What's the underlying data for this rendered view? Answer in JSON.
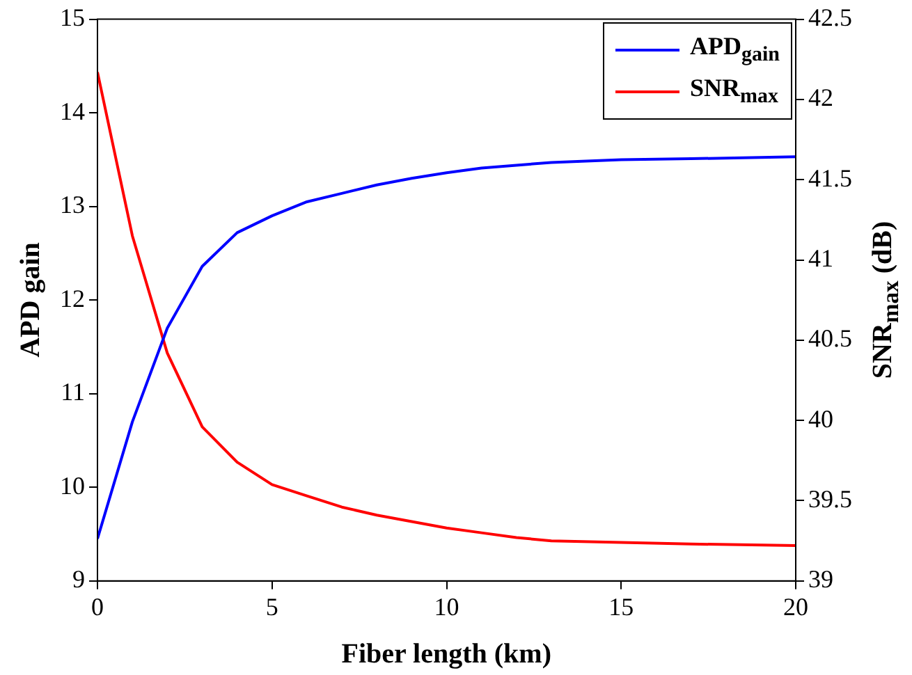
{
  "chart_data": {
    "type": "line",
    "xlabel": "Fiber length (km)",
    "ylabel": "APD gain",
    "y2label": "SNR$_{max}$ (dB)",
    "x": [
      0,
      1,
      2,
      3,
      4,
      5,
      6,
      7,
      8,
      9,
      10,
      11,
      12,
      13,
      15,
      17,
      20
    ],
    "series": [
      {
        "name": "APD$_{gain}$",
        "color": "#0000ff",
        "values": [
          9.45,
          10.7,
          11.7,
          12.36,
          12.72,
          12.9,
          13.05,
          13.14,
          13.23,
          13.3,
          13.36,
          13.41,
          13.44,
          13.47,
          13.5,
          13.51,
          13.53
        ]
      },
      {
        "name": "SNR$_{max}$",
        "color": "#ff0000",
        "axis": "y2",
        "values": [
          42.17,
          41.15,
          40.42,
          39.96,
          39.74,
          39.6,
          39.53,
          39.46,
          39.41,
          39.37,
          39.33,
          39.3,
          39.27,
          39.25,
          39.24,
          39.23,
          39.22
        ]
      }
    ],
    "xlim": [
      0,
      20
    ],
    "xticks": [
      0,
      5,
      10,
      15,
      20
    ],
    "ylim": [
      9,
      15
    ],
    "yticks": [
      9,
      10,
      11,
      12,
      13,
      14,
      15
    ],
    "y2lim": [
      39,
      42.5
    ],
    "y2ticks": [
      39,
      39.5,
      40,
      40.5,
      41,
      41.5,
      42,
      42.5
    ],
    "legend": "top right",
    "marker": "none",
    "line_style": "solid",
    "grid": false
  }
}
